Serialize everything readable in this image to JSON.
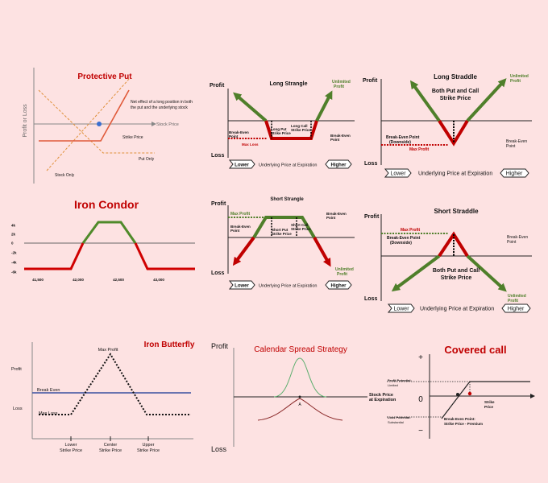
{
  "panels": [
    {
      "title": "Protective Put",
      "labels": [
        "Profit or Loss",
        "Stock Price",
        "Net effect of a long position in both",
        "the put and the underlying stock",
        "Strike Price",
        "Put Only",
        "Stock Only"
      ]
    },
    {
      "title": "Long Strangle",
      "labels": [
        "Profit",
        "Loss",
        "Unlimited",
        "Profit",
        "Break-Even",
        "Point",
        "Long Put",
        "Strike Price",
        "Long Call",
        "Strike Price",
        "Max Loss",
        "Break-Even",
        "Point",
        "Lower",
        "Underlying Price at Expiration",
        "Higher"
      ]
    },
    {
      "title": "Long Straddle",
      "labels": [
        "Profit",
        "Loss",
        "Unlimited",
        "Profit",
        "Both Put and Call",
        "Strike Price",
        "Break-Even Point",
        "(Downside)",
        "Max Profit",
        "Break-Even",
        "Point",
        "Lower",
        "Underlying Price at Expiration",
        "Higher"
      ]
    },
    {
      "title": "Iron Condor",
      "yticks": [
        "4k",
        "2k",
        "0",
        "-2k",
        "-4k",
        "-6k"
      ],
      "xticks": [
        "41,500",
        "42,000",
        "42,500",
        "43,000"
      ]
    },
    {
      "title": "Short Strangle",
      "labels": [
        "Profit",
        "Loss",
        "Max Profit",
        "Break-Even",
        "Point",
        "Short Put",
        "Strike Price",
        "Short Call",
        "Strike Price",
        "Break-Even",
        "Point",
        "Unlimited",
        "Profit",
        "Lower",
        "Underlying Price at Expiration",
        "Higher"
      ]
    },
    {
      "title": "Short Straddle",
      "labels": [
        "Profit",
        "Loss",
        "Max Profit",
        "Break-Even Point",
        "(Downside)",
        "Break-Even",
        "Point",
        "Both Put and Call",
        "Strike Price",
        "Unlimited",
        "Profit",
        "Lower",
        "Underlying Price at Expiration",
        "Higher"
      ]
    },
    {
      "title": "Iron Butterfly",
      "labels": [
        "Max Profit",
        "Profit",
        "Break Even",
        "Loss",
        "Max Loss",
        "Lower",
        "Strike Price",
        "Center",
        "Strike Price",
        "Upper",
        "Strike Price"
      ]
    },
    {
      "title": "Calendar Spread Strategy",
      "labels": [
        "Profit",
        "Stock Price",
        "at Expiration",
        "A",
        "Loss"
      ]
    },
    {
      "title": "Covered call",
      "labels": [
        "+",
        "0",
        "−",
        "Profit Potential:",
        "Limited",
        "Strike",
        "Price",
        "Loss Potential:",
        "Substantial",
        "Break-Even Point:",
        "Strike Price - Premium"
      ]
    }
  ]
}
